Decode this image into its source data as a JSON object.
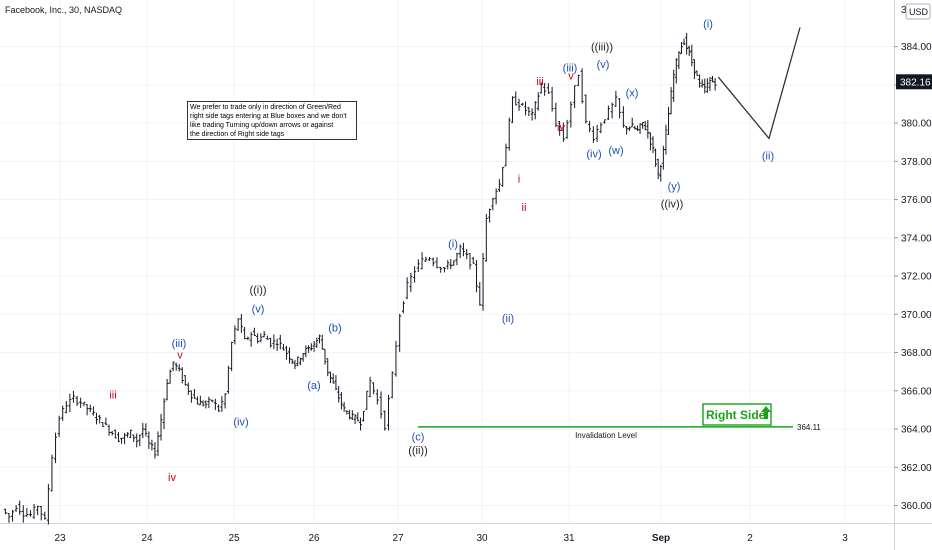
{
  "header": {
    "title": "Facebook, Inc., 30, NASDAQ",
    "currency": "USD",
    "currency_prefix": "3"
  },
  "note": {
    "lines": [
      "We prefer to trade only in direction of Green/Red",
      "right side tags entering at Blue boxes and we don't",
      "like trading Turning up/down arrows or against",
      "the direction of Right side tags"
    ]
  },
  "right_side_tag": {
    "label": "Right Side",
    "color": "#1aa31a"
  },
  "invalidation": {
    "label": "Invalidation Level",
    "price": 364.11,
    "price_label": "364.11",
    "color": "#1aa31a"
  },
  "last_price": {
    "value": 382.16,
    "label": "382.16"
  },
  "chart_data": {
    "type": "ohlc",
    "symbol": "Facebook, Inc.",
    "interval": "30",
    "exchange": "NASDAQ",
    "y_range": [
      359,
      386
    ],
    "y_ticks": [
      "360.00",
      "362.00",
      "364.00",
      "366.00",
      "368.00",
      "370.00",
      "372.00",
      "374.00",
      "376.00",
      "378.00",
      "380.00",
      "382.00",
      "384.00"
    ],
    "x_ticks": [
      "23",
      "24",
      "25",
      "26",
      "27",
      "30",
      "31",
      "Sep",
      "2",
      "3"
    ],
    "path": [
      [
        "23",
        359.8
      ],
      [
        "23",
        359.4
      ],
      [
        "23",
        360.0
      ],
      [
        "23",
        359.6
      ],
      [
        "23",
        359.5
      ],
      [
        "23",
        360.0
      ],
      [
        "23",
        359.2
      ],
      [
        "23",
        362.6
      ],
      [
        "23",
        364.6
      ],
      [
        "23",
        365.3
      ],
      [
        "23",
        365.6
      ],
      [
        "23",
        365.4
      ],
      [
        "24",
        363.5
      ],
      [
        "24",
        363.6
      ],
      [
        "24",
        363.8
      ],
      [
        "24",
        363.4
      ],
      [
        "24",
        364.0
      ],
      [
        "24",
        363.2
      ],
      [
        "24",
        362.8
      ],
      [
        "24",
        364.5
      ],
      [
        "24",
        366.5
      ],
      [
        "24",
        367.5
      ],
      [
        "24",
        367.0
      ],
      [
        "24",
        366.3
      ],
      [
        "24",
        365.8
      ],
      [
        "24",
        365.4
      ],
      [
        "25",
        365.3
      ],
      [
        "25",
        365.5
      ],
      [
        "25",
        365.0
      ],
      [
        "25",
        365.8
      ],
      [
        "25",
        368.5
      ],
      [
        "25",
        369.8
      ],
      [
        "25",
        368.6
      ],
      [
        "25",
        369.0
      ],
      [
        "25",
        368.7
      ],
      [
        "25",
        368.9
      ],
      [
        "25",
        368.5
      ],
      [
        "25",
        368.6
      ],
      [
        "26",
        368.0
      ],
      [
        "26",
        367.4
      ],
      [
        "26",
        368.0
      ],
      [
        "26",
        368.3
      ],
      [
        "26",
        368.8
      ],
      [
        "26",
        367.0
      ],
      [
        "26",
        366.0
      ],
      [
        "26",
        365.0
      ],
      [
        "26",
        364.6
      ],
      [
        "26",
        364.4
      ],
      [
        "27",
        366.5
      ],
      [
        "27",
        365.5
      ],
      [
        "27",
        364.2
      ],
      [
        "27",
        366.8
      ],
      [
        "27",
        370.0
      ],
      [
        "27",
        371.5
      ],
      [
        "27",
        372.3
      ],
      [
        "27",
        372.8
      ],
      [
        "27",
        373.0
      ],
      [
        "27",
        372.6
      ],
      [
        "27",
        372.4
      ],
      [
        "30",
        372.8
      ],
      [
        "30",
        373.4
      ],
      [
        "30",
        373.0
      ],
      [
        "30",
        372.5
      ],
      [
        "30",
        370.6
      ],
      [
        "30",
        375.0
      ],
      [
        "30",
        376.2
      ],
      [
        "30",
        376.8
      ],
      [
        "30",
        378.8
      ],
      [
        "30",
        381.2
      ],
      [
        "30",
        381.0
      ],
      [
        "30",
        380.7
      ],
      [
        "30",
        380.4
      ],
      [
        "31",
        382.0
      ],
      [
        "31",
        381.5
      ],
      [
        "31",
        380.0
      ],
      [
        "31",
        379.2
      ],
      [
        "31",
        381.0
      ],
      [
        "31",
        382.6
      ],
      [
        "31",
        380.0
      ],
      [
        "31",
        379.3
      ],
      [
        "31",
        380.0
      ],
      [
        "31",
        380.6
      ],
      [
        "31",
        381.2
      ],
      [
        "31",
        379.8
      ],
      [
        "Sep",
        379.8
      ],
      [
        "Sep",
        379.6
      ],
      [
        "Sep",
        380.0
      ],
      [
        "Sep",
        379.5
      ],
      [
        "Sep",
        378.6
      ],
      [
        "Sep",
        377.3
      ],
      [
        "Sep",
        378.5
      ],
      [
        "Sep",
        380.5
      ],
      [
        "Sep",
        382.5
      ],
      [
        "Sep",
        383.8
      ],
      [
        "Sep",
        384.3
      ],
      [
        "Sep",
        383.6
      ],
      [
        "Sep",
        382.8
      ],
      [
        "Sep",
        382.0
      ],
      [
        "Sep",
        381.8
      ],
      [
        "Sep",
        382.2
      ],
      [
        "Sep",
        382.16
      ]
    ],
    "projection": [
      [
        "Sep",
        382.4
      ],
      [
        "2",
        379.2
      ],
      [
        "2",
        385.0
      ]
    ],
    "wave_labels": [
      {
        "text": "iii",
        "color": "#d0021b",
        "x": "23",
        "y": 365.8
      },
      {
        "text": "(iii)",
        "color": "#1c4fb5",
        "x": "24",
        "y": 368.5
      },
      {
        "text": "v",
        "color": "#d0021b",
        "x": "24",
        "y": 367.9
      },
      {
        "text": "iv",
        "color": "#d0021b",
        "x": "24",
        "y": 361.5
      },
      {
        "text": "(iv)",
        "color": "#1c4fb5",
        "x": "25",
        "y": 364.4
      },
      {
        "text": "((i))",
        "color": "#222222",
        "x": "25",
        "y": 371.3
      },
      {
        "text": "(v)",
        "color": "#1c4fb5",
        "x": "25",
        "y": 370.3
      },
      {
        "text": "(b)",
        "color": "#1c4fb5",
        "x": "26",
        "y": 369.3
      },
      {
        "text": "(a)",
        "color": "#1c4fb5",
        "x": "26",
        "y": 366.3
      },
      {
        "text": "(c)",
        "color": "#1c4fb5",
        "x": "27",
        "y": 363.6
      },
      {
        "text": "((ii))",
        "color": "#222222",
        "x": "27",
        "y": 362.9
      },
      {
        "text": "(i)",
        "color": "#1c4fb5",
        "x": "27",
        "y": 373.7
      },
      {
        "text": "(ii)",
        "color": "#1c4fb5",
        "x": "30",
        "y": 369.8
      },
      {
        "text": "i",
        "color": "#d0021b",
        "x": "30",
        "y": 377.1
      },
      {
        "text": "ii",
        "color": "#d0021b",
        "x": "30",
        "y": 375.6
      },
      {
        "text": "iii",
        "color": "#d0021b",
        "x": "30",
        "y": 382.2
      },
      {
        "text": "iv",
        "color": "#d0021b",
        "x": "31",
        "y": 379.8
      },
      {
        "text": "(iii)",
        "color": "#1c4fb5",
        "x": "31",
        "y": 382.9
      },
      {
        "text": "v",
        "color": "#d0021b",
        "x": "31",
        "y": 382.5
      },
      {
        "text": "((iii))",
        "color": "#222222",
        "x": "31",
        "y": 384.0
      },
      {
        "text": "(v)",
        "color": "#1c4fb5",
        "x": "31",
        "y": 383.1
      },
      {
        "text": "(iv)",
        "color": "#1c4fb5",
        "x": "31",
        "y": 378.4
      },
      {
        "text": "(w)",
        "color": "#1c4fb5",
        "x": "31",
        "y": 378.6
      },
      {
        "text": "(x)",
        "color": "#1c4fb5",
        "x": "31",
        "y": 381.6
      },
      {
        "text": "(y)",
        "color": "#1c4fb5",
        "x": "Sep",
        "y": 376.7
      },
      {
        "text": "((iv))",
        "color": "#222222",
        "x": "Sep",
        "y": 375.8
      },
      {
        "text": "(i)",
        "color": "#1c4fb5",
        "x": "Sep",
        "y": 385.2
      },
      {
        "text": "(ii)",
        "color": "#1c4fb5",
        "x": "2",
        "y": 378.3
      }
    ]
  }
}
